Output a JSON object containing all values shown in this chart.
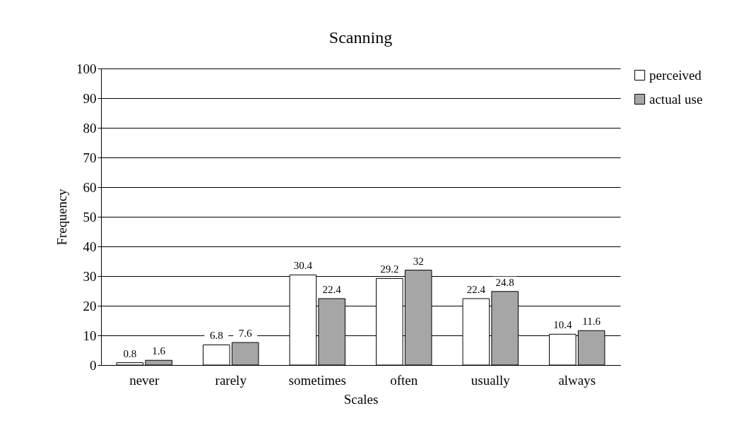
{
  "chart_data": {
    "type": "bar",
    "title": "Scanning",
    "xlabel": "Scales",
    "ylabel": "Frequency",
    "categories": [
      "never",
      "rarely",
      "sometimes",
      "often",
      "usually",
      "always"
    ],
    "series": [
      {
        "name": "perceived",
        "color": "#ffffff",
        "values": [
          0.8,
          6.8,
          30.4,
          29.2,
          22.4,
          10.4
        ]
      },
      {
        "name": "actual use",
        "color": "#a6a6a6",
        "values": [
          1.6,
          7.6,
          22.4,
          32,
          24.8,
          11.6
        ]
      }
    ],
    "ylim": [
      0,
      100
    ],
    "yticks": [
      0,
      10,
      20,
      30,
      40,
      50,
      60,
      70,
      80,
      90,
      100
    ],
    "grid": "y",
    "legend": "right",
    "data_labels": true
  }
}
